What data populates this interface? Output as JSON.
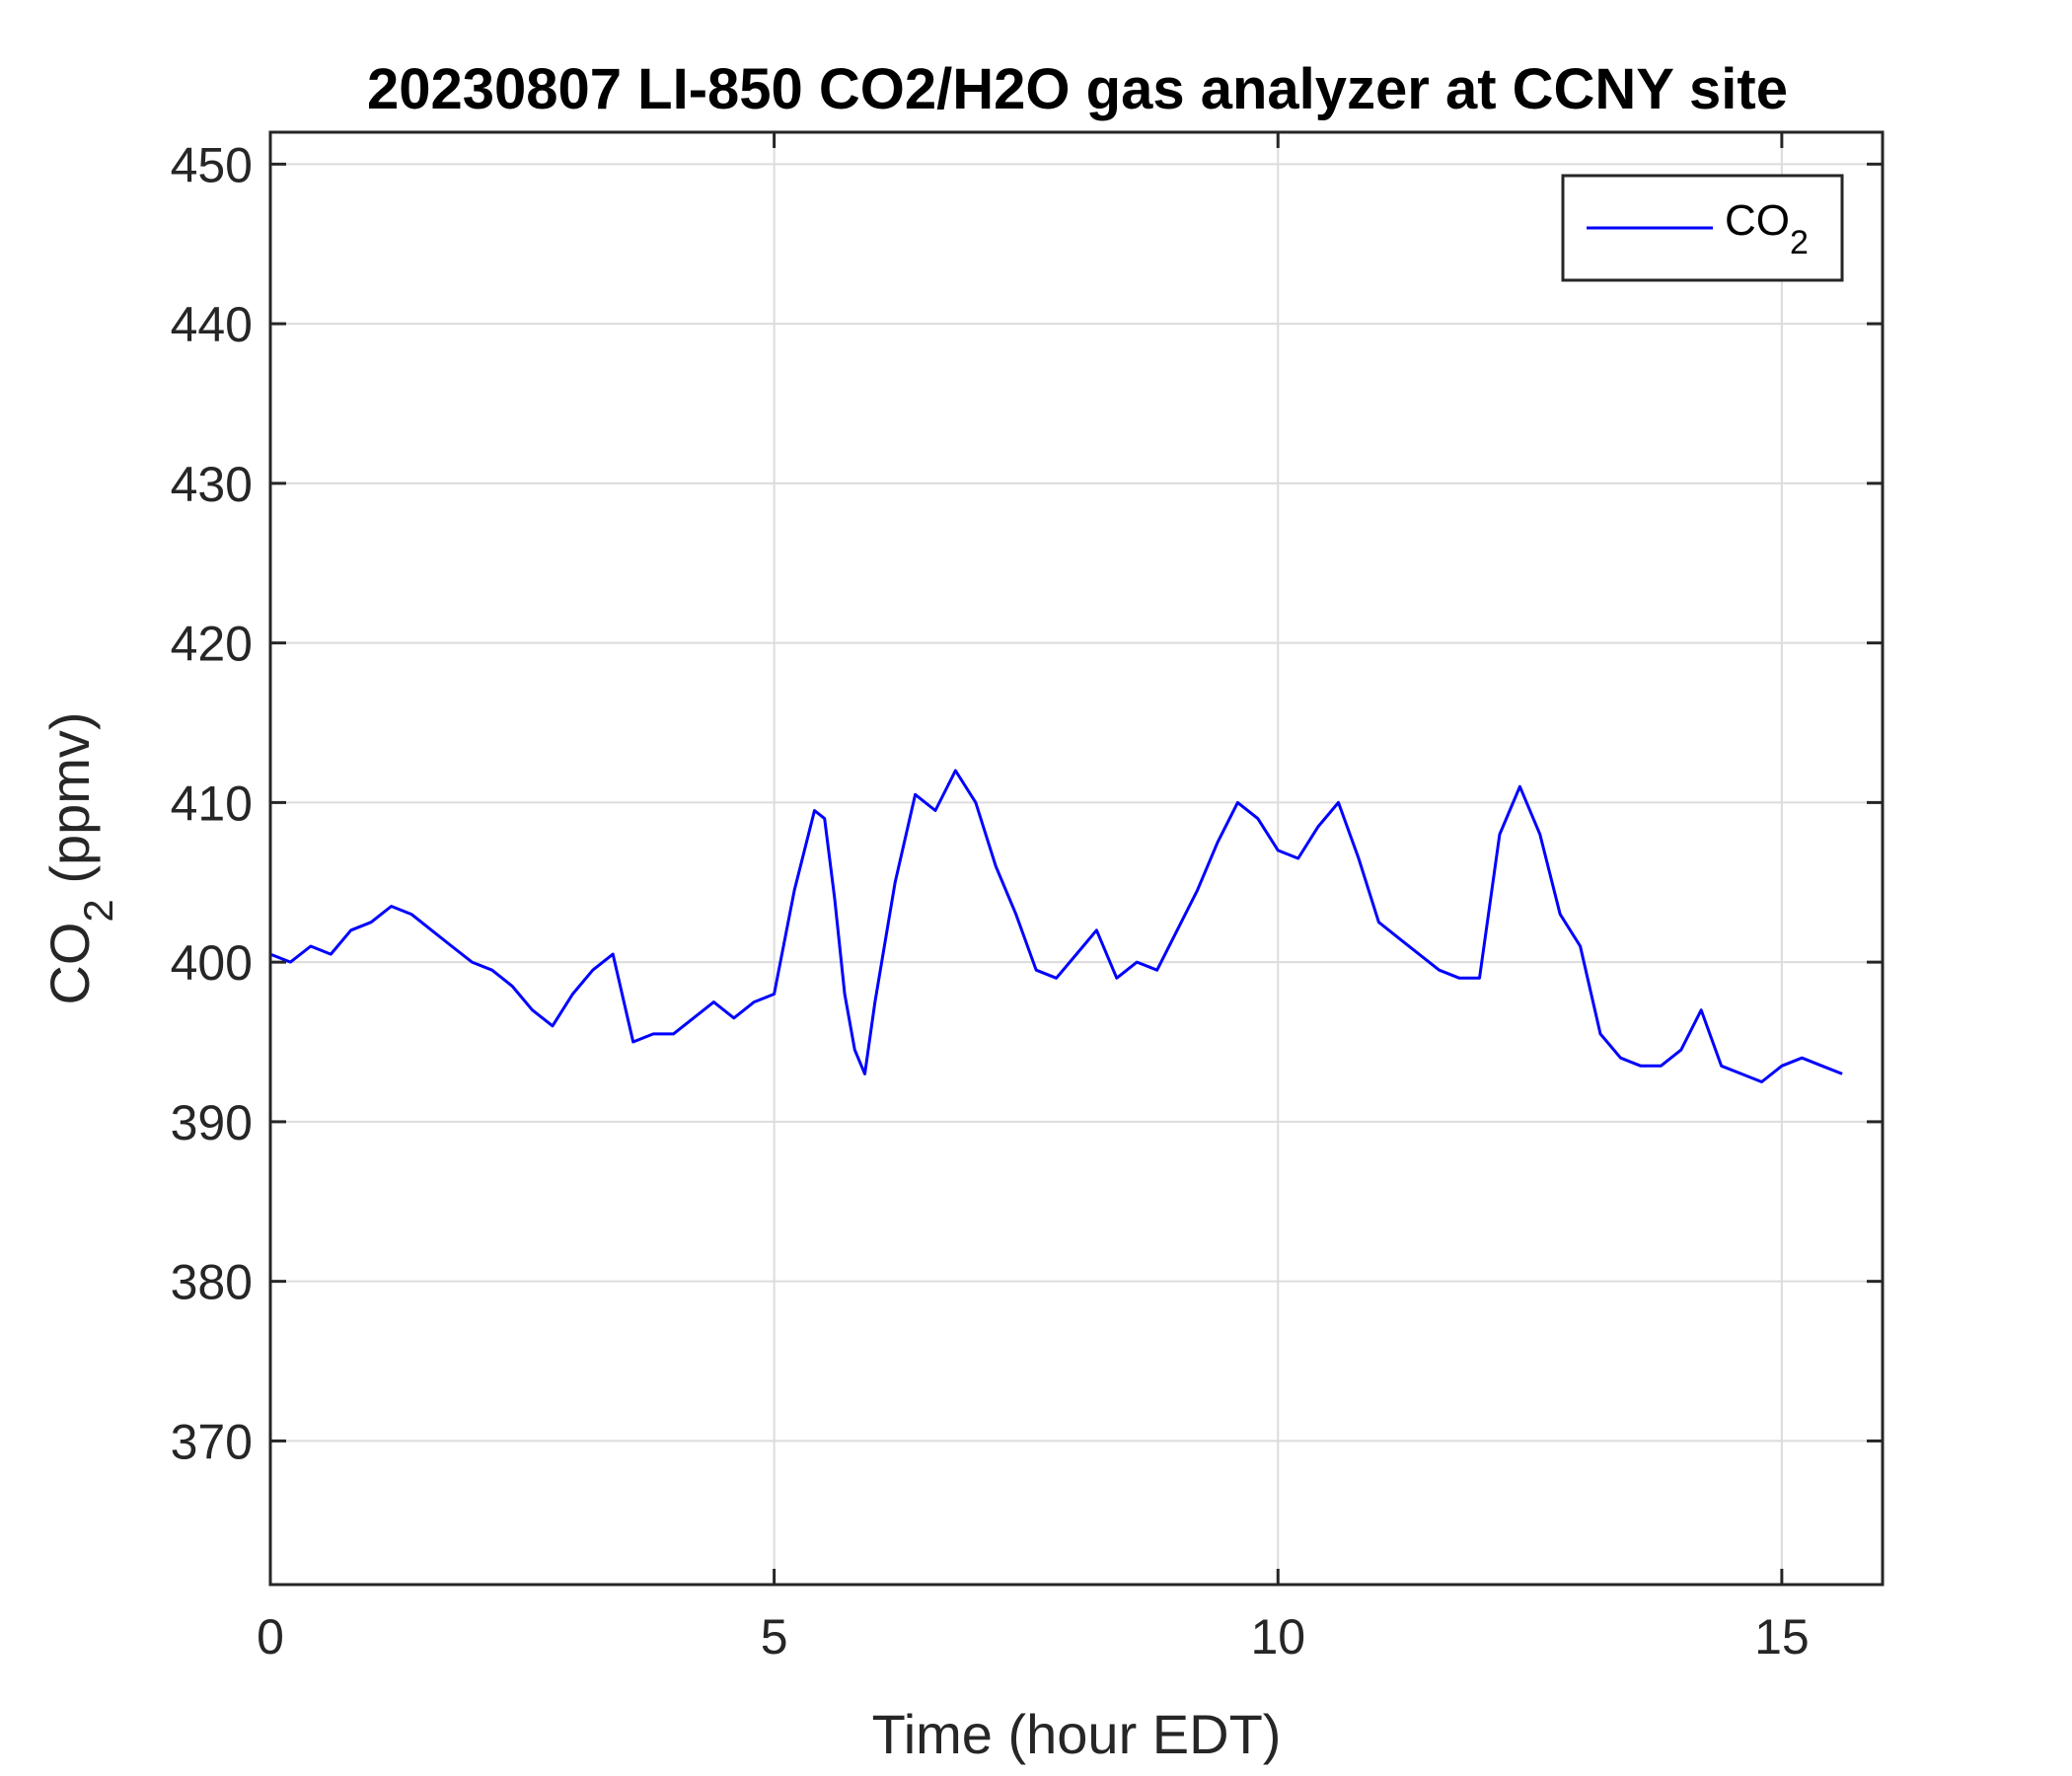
{
  "chart_data": {
    "type": "line",
    "title": "20230807 LI-850 CO2/H2O gas analyzer at CCNY site",
    "xlabel": "Time (hour EDT)",
    "ylabel": {
      "base": "CO",
      "sub": "2",
      "rest": " (ppmv)"
    },
    "xlim": [
      0,
      16
    ],
    "ylim": [
      361,
      452
    ],
    "xticks": [
      0,
      5,
      10,
      15
    ],
    "yticks": [
      370,
      380,
      390,
      400,
      410,
      420,
      430,
      440,
      450
    ],
    "grid": true,
    "legend": {
      "position": "top-right"
    },
    "series": [
      {
        "name": {
          "base": "CO",
          "sub": "2"
        },
        "color": "#0000ff",
        "x": [
          0,
          0.2,
          0.4,
          0.6,
          0.8,
          1.0,
          1.2,
          1.4,
          1.6,
          1.8,
          2.0,
          2.2,
          2.4,
          2.6,
          2.8,
          3.0,
          3.2,
          3.4,
          3.6,
          3.8,
          4.0,
          4.2,
          4.4,
          4.6,
          4.8,
          5.0,
          5.2,
          5.4,
          5.5,
          5.6,
          5.7,
          5.8,
          5.9,
          6.0,
          6.2,
          6.4,
          6.6,
          6.8,
          7.0,
          7.2,
          7.4,
          7.6,
          7.8,
          8.0,
          8.2,
          8.4,
          8.6,
          8.8,
          9.0,
          9.2,
          9.4,
          9.6,
          9.8,
          10.0,
          10.2,
          10.4,
          10.6,
          10.8,
          11.0,
          11.2,
          11.4,
          11.6,
          11.8,
          12.0,
          12.2,
          12.4,
          12.6,
          12.8,
          13.0,
          13.2,
          13.4,
          13.6,
          13.8,
          14.0,
          14.2,
          14.4,
          14.6,
          14.8,
          15.0,
          15.2,
          15.4,
          15.6
        ],
        "y": [
          400.5,
          400.0,
          401.0,
          400.5,
          402.0,
          402.5,
          403.5,
          403.0,
          402.0,
          401.0,
          400.0,
          399.5,
          398.5,
          397.0,
          396.0,
          398.0,
          399.5,
          400.5,
          395.0,
          395.5,
          395.5,
          396.5,
          397.5,
          396.5,
          397.5,
          398.0,
          404.5,
          409.5,
          409.0,
          404.0,
          398.0,
          394.5,
          393.0,
          397.5,
          405.0,
          410.5,
          409.5,
          412.0,
          410.0,
          406.0,
          403.0,
          399.5,
          399.0,
          400.5,
          402.0,
          399.0,
          400.0,
          399.5,
          402.0,
          404.5,
          407.5,
          410.0,
          409.0,
          407.0,
          406.5,
          408.5,
          410.0,
          406.5,
          402.5,
          401.5,
          400.5,
          399.5,
          399.0,
          399.0,
          408.0,
          411.0,
          408.0,
          403.0,
          401.0,
          395.5,
          394.0,
          393.5,
          393.5,
          394.5,
          397.0,
          393.5,
          393.0,
          392.5,
          393.5,
          394.0,
          393.5,
          393.0
        ]
      }
    ]
  }
}
